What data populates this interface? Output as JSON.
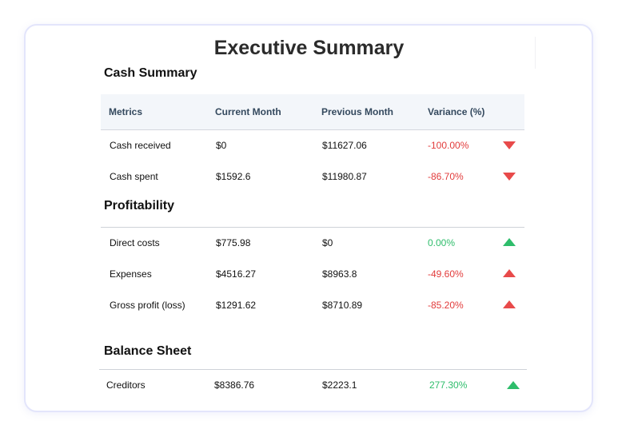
{
  "page": {
    "title": "Executive Summary"
  },
  "colors": {
    "negative": "#e23b3b",
    "positive": "#2ebd6b",
    "header_bg": "#f3f6fa",
    "card_border": "#e3e5fb"
  },
  "cash_summary": {
    "title": "Cash Summary",
    "headers": [
      "Metrics",
      "Current Month",
      "Previous Month",
      "Variance (%)"
    ],
    "rows": [
      {
        "metric": "Cash received",
        "current": "$0",
        "previous": "$11627.06",
        "variance": "-100.00%",
        "trend_icon": "triangle-down-icon-red"
      },
      {
        "metric": "Cash spent",
        "current": "$1592.6",
        "previous": "$11980.87",
        "variance": "-86.70%",
        "trend_icon": "triangle-down-icon-red"
      }
    ]
  },
  "profitability": {
    "title": "Profitability",
    "rows": [
      {
        "metric": "Direct costs",
        "current": "$775.98",
        "previous": "$0",
        "variance": "0.00%",
        "trend_icon": "triangle-up-icon-green"
      },
      {
        "metric": "Expenses",
        "current": "$4516.27",
        "previous": "$8963.8",
        "variance": "-49.60%",
        "trend_icon": "triangle-up-icon-red"
      },
      {
        "metric": "Gross profit (loss)",
        "current": "$1291.62",
        "previous": "$8710.89",
        "variance": "-85.20%",
        "trend_icon": "triangle-up-icon-red"
      }
    ]
  },
  "balance_sheet": {
    "title": "Balance Sheet",
    "rows": [
      {
        "metric": "Creditors",
        "current": "$8386.76",
        "previous": "$2223.1",
        "variance": "277.30%",
        "trend_icon": "triangle-up-icon-green"
      }
    ]
  }
}
